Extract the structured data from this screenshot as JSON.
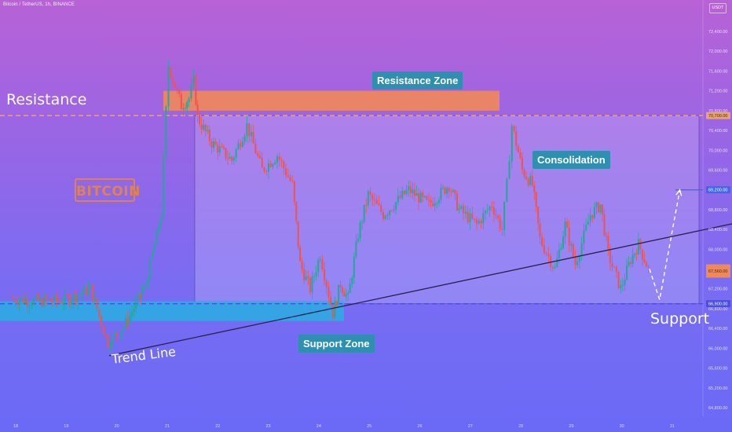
{
  "header": {
    "title": "Bitcoin / TetherUS, 1h, BINANCE",
    "currency": "USDT"
  },
  "annotations": {
    "resistance": "Resistance",
    "support": "Support",
    "trend_line": "Trend Line",
    "resistance_zone": "Resistance Zone",
    "support_zone": "Support Zone",
    "consolidation": "Consolidation",
    "logo": "BITCOIN"
  },
  "colors": {
    "up_candle": "#26a69a",
    "down_candle": "#ef5350",
    "resistance_zone": "#f0885a",
    "support_zone": "#29aee0",
    "label_bg": "#2e8fb0",
    "resistance_line": "#f0a050",
    "support_line": "#4a4fe0",
    "target_line": "#3d6ae8"
  },
  "chart_data": {
    "type": "candlestick",
    "y_axis_ticks": [
      "72,400.00",
      "72,000.00",
      "71,600.00",
      "71,200.00",
      "70,800.00",
      "70,400.00",
      "70,000.00",
      "69,600.00",
      "69,200.00",
      "68,800.00",
      "68,400.00",
      "68,000.00",
      "67,600.00",
      "67,200.00",
      "66,800.00",
      "66,400.00",
      "66,000.00",
      "65,600.00",
      "65,200.00",
      "64,800.00"
    ],
    "x_axis_ticks": [
      "18",
      "19",
      "20",
      "21",
      "22",
      "23",
      "24",
      "25",
      "26",
      "27",
      "28",
      "29",
      "30",
      "31"
    ],
    "ylim": [
      64650,
      72850
    ],
    "price_labels": {
      "resistance": "70,700.00",
      "target": "69,200.00",
      "last": "67,560.00",
      "support": "66,900.00"
    },
    "resistance_level": 70700,
    "support_level": 66900,
    "target_level": 69200,
    "resistance_zone": {
      "low": 70800,
      "high": 71200
    },
    "support_zone": {
      "low": 66550,
      "high": 66950
    },
    "trend_line": {
      "from": {
        "x": 19.85,
        "y": 65850
      },
      "to": {
        "x": 32.35,
        "y": 68550
      }
    },
    "projection": [
      [
        30.55,
        67600
      ],
      [
        30.75,
        66980
      ],
      [
        31.15,
        69200
      ]
    ],
    "key_prices": [
      [
        17.93,
        67000
      ],
      [
        18.5,
        66950
      ],
      [
        19.0,
        66970
      ],
      [
        19.5,
        67200
      ],
      [
        19.85,
        66100
      ],
      [
        20.2,
        66500
      ],
      [
        20.6,
        67300
      ],
      [
        20.9,
        68700
      ],
      [
        21.0,
        70800
      ],
      [
        21.05,
        71700
      ],
      [
        21.3,
        70900
      ],
      [
        21.45,
        71050
      ],
      [
        21.55,
        71400
      ],
      [
        21.62,
        70650
      ],
      [
        21.9,
        70150
      ],
      [
        22.3,
        69800
      ],
      [
        22.6,
        70500
      ],
      [
        22.9,
        69600
      ],
      [
        23.2,
        69900
      ],
      [
        23.5,
        69300
      ],
      [
        23.65,
        67700
      ],
      [
        23.85,
        67200
      ],
      [
        24.05,
        67900
      ],
      [
        24.3,
        66700
      ],
      [
        24.45,
        67300
      ],
      [
        24.6,
        67000
      ],
      [
        24.8,
        68300
      ],
      [
        25.0,
        69100
      ],
      [
        25.3,
        68700
      ],
      [
        25.8,
        69200
      ],
      [
        26.2,
        68900
      ],
      [
        26.6,
        69300
      ],
      [
        26.8,
        68800
      ],
      [
        27.15,
        68500
      ],
      [
        27.45,
        68900
      ],
      [
        27.65,
        68400
      ],
      [
        27.75,
        69300
      ],
      [
        27.85,
        70500
      ],
      [
        28.05,
        69600
      ],
      [
        28.25,
        69300
      ],
      [
        28.4,
        68200
      ],
      [
        28.7,
        67600
      ],
      [
        28.9,
        68500
      ],
      [
        29.1,
        67700
      ],
      [
        29.4,
        68700
      ],
      [
        29.6,
        68900
      ],
      [
        29.75,
        67900
      ],
      [
        30.0,
        67200
      ],
      [
        30.2,
        67800
      ],
      [
        30.35,
        68100
      ],
      [
        30.55,
        67600
      ]
    ]
  }
}
